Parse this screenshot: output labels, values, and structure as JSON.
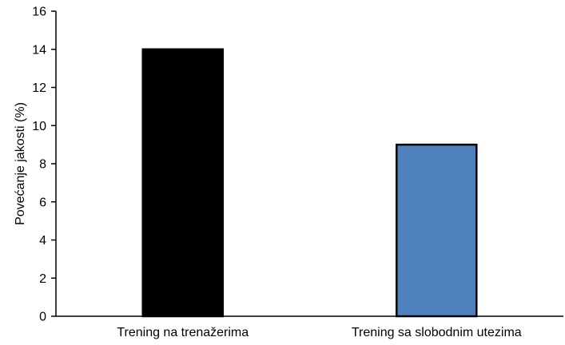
{
  "chart_data": {
    "type": "bar",
    "categories": [
      "Trening na trenažerima",
      "Trening sa slobodnim utezima"
    ],
    "values": [
      14,
      9
    ],
    "bar_colors": [
      "#000000",
      "#4f81bd"
    ],
    "bar_edge_color": "#000000",
    "title": "",
    "xlabel": "",
    "ylabel": "Povećanje jakosti (%)",
    "ylim": [
      0,
      16
    ],
    "yticks": [
      0,
      2,
      4,
      6,
      8,
      10,
      12,
      14,
      16
    ],
    "grid": false,
    "legend": false
  }
}
